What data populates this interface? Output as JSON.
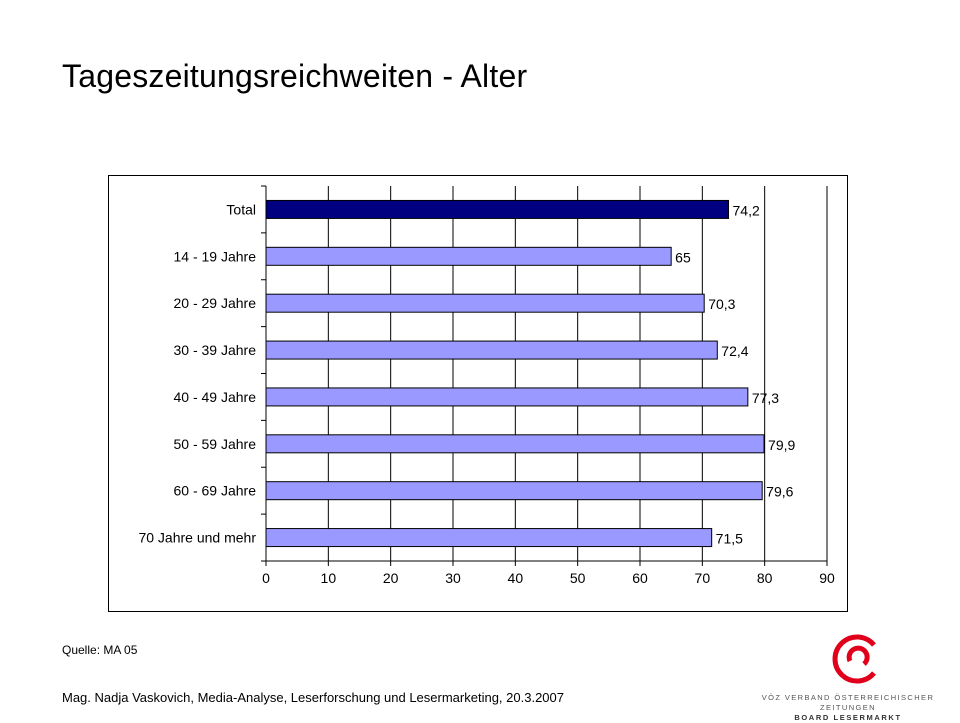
{
  "header": {
    "title": "Tageszeitungsreichweiten - Alter"
  },
  "chart_data": {
    "type": "bar",
    "orientation": "horizontal",
    "categories": [
      "Total",
      "14 - 19 Jahre",
      "20 - 29 Jahre",
      "30 - 39 Jahre",
      "40 - 49 Jahre",
      "50 - 59 Jahre",
      "60 - 69 Jahre",
      "70 Jahre und mehr"
    ],
    "values": [
      74.2,
      65,
      70.3,
      72.4,
      77.3,
      79.9,
      79.6,
      71.5
    ],
    "value_labels": [
      "74,2",
      "65",
      "70,3",
      "72,4",
      "77,3",
      "79,9",
      "79,6",
      "71,5"
    ],
    "bar_colors": [
      "#000080",
      "#9999ff",
      "#9999ff",
      "#9999ff",
      "#9999ff",
      "#9999ff",
      "#9999ff",
      "#9999ff"
    ],
    "xlim": [
      0,
      90
    ],
    "xticks": [
      0,
      10,
      20,
      30,
      40,
      50,
      60,
      70,
      80,
      90
    ],
    "grid": true
  },
  "source": {
    "text": "Quelle:  MA 05"
  },
  "footer": {
    "text": "Mag. Nadja Vaskovich, Media-Analyse, Leserforschung und Lesermarketing,  20.3.2007"
  },
  "logo": {
    "line1": "VÖZ VERBAND ÖSTERREICHISCHER ZEITUNGEN",
    "line2": "BOARD LESERMARKT",
    "color": "#e0001b"
  }
}
